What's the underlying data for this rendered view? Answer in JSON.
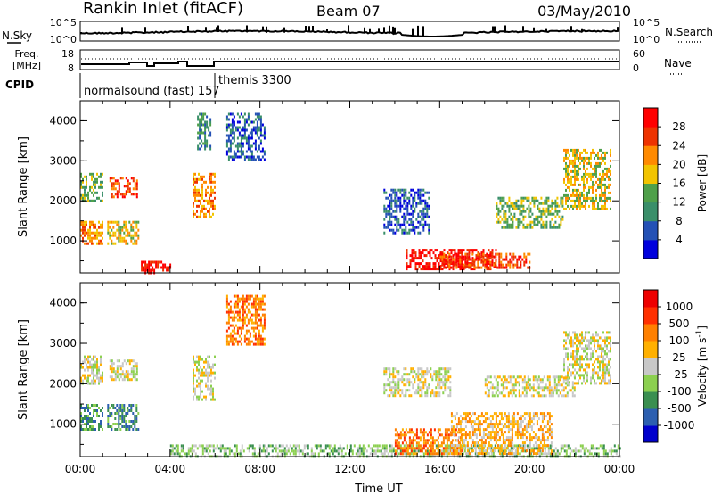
{
  "header": {
    "title": "Rankin Inlet (fitACF)",
    "beam": "Beam 07",
    "date": "03/May/2010"
  },
  "panels": {
    "nsky_label": "N.Sky",
    "nsearch_label": "N.Search",
    "freq_label": "Freq.",
    "freq_unit": "[MHz]",
    "nave_label": "Nave",
    "cpid_label": "CPID",
    "noise_ticks": [
      "10^5",
      "10^0"
    ],
    "freq_ticks": [
      "18",
      "8"
    ],
    "nave_ticks": [
      "60",
      "0"
    ]
  },
  "chart_data": [
    {
      "type": "heatmap",
      "name": "power",
      "xlabel": "",
      "ylabel": "Slant Range [km]",
      "yticks": [
        "1000",
        "2000",
        "3000",
        "4000"
      ],
      "xlim": [
        0,
        24
      ],
      "ylim": [
        200,
        4500
      ],
      "colorbar": {
        "label": "Power [dB]",
        "ticks": [
          "4",
          "8",
          "12",
          "16",
          "20",
          "24",
          "28"
        ],
        "colors": [
          "#0000dd",
          "#2451b5",
          "#3a8f6a",
          "#4fa04a",
          "#f2c400",
          "#ff8a00",
          "#ee3300",
          "#ff0000"
        ]
      },
      "regions": [
        {
          "t": [
            0.0,
            1.0
          ],
          "r": [
            900,
            1500
          ],
          "level": 5
        },
        {
          "t": [
            0.0,
            1.0
          ],
          "r": [
            2000,
            2700
          ],
          "level": 3
        },
        {
          "t": [
            1.2,
            2.6
          ],
          "r": [
            900,
            1500
          ],
          "level": 4
        },
        {
          "t": [
            1.3,
            2.5
          ],
          "r": [
            2100,
            2600
          ],
          "level": 6
        },
        {
          "t": [
            2.7,
            4.0
          ],
          "r": [
            200,
            500
          ],
          "level": 7
        },
        {
          "t": [
            5.0,
            6.0
          ],
          "r": [
            1600,
            2700
          ],
          "level": 5
        },
        {
          "t": [
            5.2,
            5.8
          ],
          "r": [
            3300,
            4200
          ],
          "level": 2
        },
        {
          "t": [
            6.5,
            8.2
          ],
          "r": [
            3000,
            4200
          ],
          "level": 1
        },
        {
          "t": [
            13.5,
            15.5
          ],
          "r": [
            1200,
            2300
          ],
          "level": 1
        },
        {
          "t": [
            14.5,
            18.5
          ],
          "r": [
            300,
            800
          ],
          "level": 7
        },
        {
          "t": [
            16.0,
            20.0
          ],
          "r": [
            300,
            700
          ],
          "level": 6
        },
        {
          "t": [
            18.5,
            21.5
          ],
          "r": [
            1300,
            2100
          ],
          "level": 3
        },
        {
          "t": [
            21.5,
            23.6
          ],
          "r": [
            1800,
            3300
          ],
          "level": 4
        }
      ]
    },
    {
      "type": "heatmap",
      "name": "velocity",
      "xlabel": "Time UT",
      "ylabel": "Slant Range [km]",
      "xticks": [
        "00:00",
        "04:00",
        "08:00",
        "12:00",
        "16:00",
        "20:00",
        "00:00"
      ],
      "yticks": [
        "1000",
        "2000",
        "3000",
        "4000"
      ],
      "xlim": [
        0,
        24
      ],
      "ylim": [
        200,
        4500
      ],
      "colorbar": {
        "label": "Velocity [m s",
        "label_sup": "-1",
        "label_end": "]",
        "ticks": [
          "1000",
          "500",
          "100",
          "25",
          "-25",
          "-100",
          "-500",
          "-1000"
        ],
        "colors": [
          "#0000cc",
          "#2c5fb0",
          "#3a8f50",
          "#8cd050",
          "#c8c8c8",
          "#ffb000",
          "#ff8000",
          "#ff3000",
          "#ee0000"
        ]
      },
      "regions": [
        {
          "t": [
            0.0,
            1.0
          ],
          "r": [
            900,
            1500
          ],
          "level": 2
        },
        {
          "t": [
            0.0,
            1.0
          ],
          "r": [
            2000,
            2700
          ],
          "level": 4
        },
        {
          "t": [
            1.2,
            2.6
          ],
          "r": [
            900,
            1500
          ],
          "level": 2
        },
        {
          "t": [
            1.3,
            2.5
          ],
          "r": [
            2100,
            2600
          ],
          "level": 4
        },
        {
          "t": [
            4.0,
            24.0
          ],
          "r": [
            200,
            500
          ],
          "level": 3
        },
        {
          "t": [
            5.0,
            6.0
          ],
          "r": [
            1600,
            2700
          ],
          "level": 4
        },
        {
          "t": [
            6.5,
            8.2
          ],
          "r": [
            3000,
            4200
          ],
          "level": 6
        },
        {
          "t": [
            13.5,
            16.5
          ],
          "r": [
            1700,
            2400
          ],
          "level": 4
        },
        {
          "t": [
            14.0,
            17.0
          ],
          "r": [
            300,
            900
          ],
          "level": 6
        },
        {
          "t": [
            16.5,
            21.0
          ],
          "r": [
            300,
            1300
          ],
          "level": 5
        },
        {
          "t": [
            18.0,
            22.0
          ],
          "r": [
            1700,
            2200
          ],
          "level": 4
        },
        {
          "t": [
            21.5,
            23.6
          ],
          "r": [
            2000,
            3300
          ],
          "level": 4
        }
      ]
    }
  ]
}
